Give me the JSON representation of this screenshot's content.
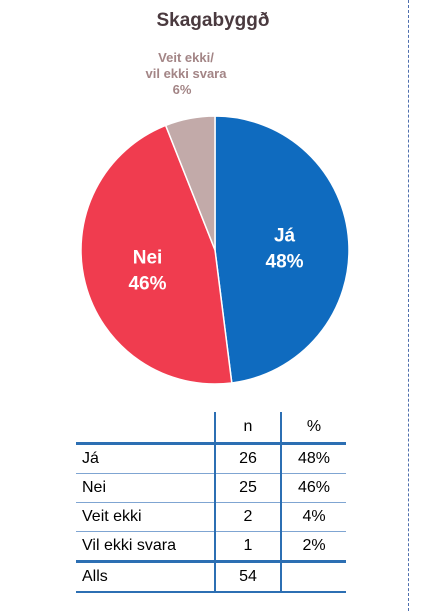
{
  "chart_data": {
    "type": "pie",
    "title": "Skagabyggð",
    "slices": [
      {
        "name": "Já",
        "value": 48,
        "label": "Já",
        "pct_label": "48%",
        "color": "#0f6bbf",
        "text_color": "#ffffff"
      },
      {
        "name": "Nei",
        "value": 46,
        "label": "Nei",
        "pct_label": "46%",
        "color": "#f03c4f",
        "text_color": "#ffffff"
      },
      {
        "name": "Veit ekki/ vil ekki svara",
        "value": 6,
        "label_lines": [
          "Veit ekki/",
          "vil ekki svara",
          "6%"
        ],
        "color": "#c2aaa9",
        "text_color": "#a38586"
      }
    ]
  },
  "table": {
    "headers": [
      "",
      "n",
      "%"
    ],
    "rows": [
      {
        "label": "Já",
        "n": "26",
        "pct": "48%"
      },
      {
        "label": "Nei",
        "n": "25",
        "pct": "46%"
      },
      {
        "label": "Veit ekki",
        "n": "2",
        "pct": "4%"
      },
      {
        "label": "Vil ekki svara",
        "n": "1",
        "pct": "2%"
      }
    ],
    "total": {
      "label": "Alls",
      "n": "54",
      "pct": ""
    }
  }
}
